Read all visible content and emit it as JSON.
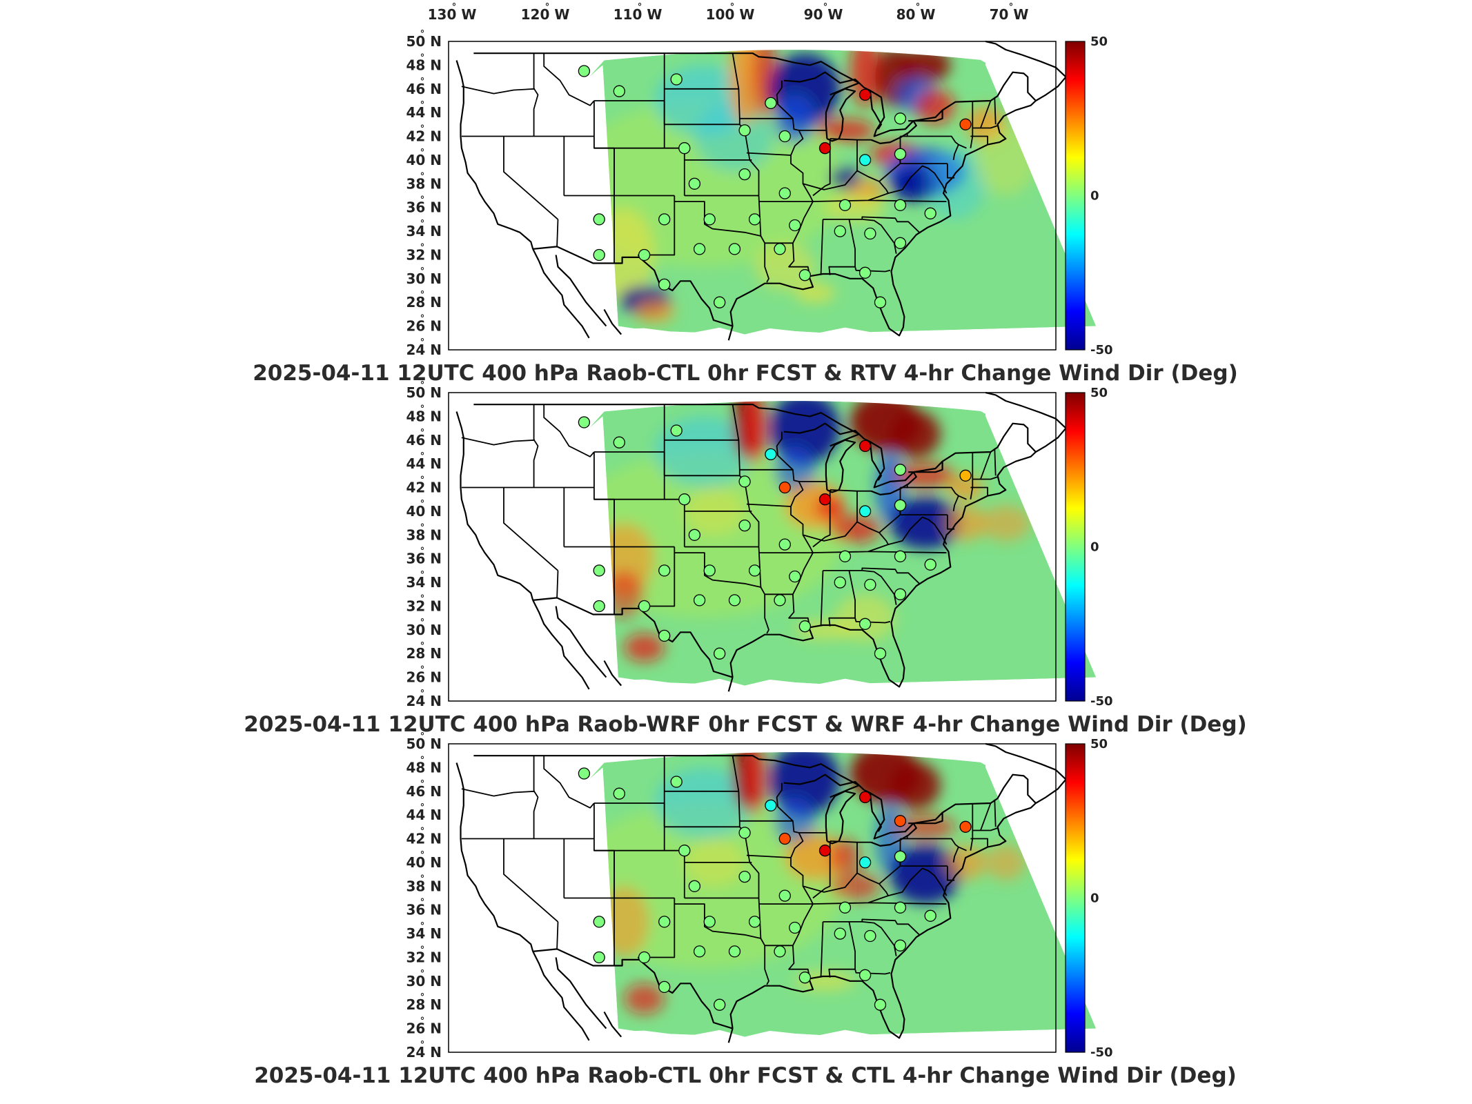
{
  "top_axis": {
    "labels": [
      "130",
      "120",
      "110",
      "100",
      "90",
      "80",
      "70"
    ],
    "suffix": "W"
  },
  "lat_axis": {
    "labels": [
      "50",
      "48",
      "46",
      "44",
      "42",
      "40",
      "38",
      "36",
      "34",
      "32",
      "30",
      "28",
      "26",
      "24"
    ],
    "suffix": "N"
  },
  "degree_symbol": "°",
  "colorbar": {
    "labels": [
      "50",
      "0",
      "-50"
    ],
    "colors": [
      "#7f0000",
      "#ff0000",
      "#ff8000",
      "#ffff00",
      "#80ff80",
      "#00ffff",
      "#0080ff",
      "#0000ff",
      "#00008f"
    ]
  },
  "panels": [
    {
      "title": "2025-04-11 12UTC 400 hPa Raob-CTL 0hr FCST & RTV 4-hr Change Wind Dir (Deg)"
    },
    {
      "title": "2025-04-11 12UTC 400 hPa Raob-WRF 0hr FCST & WRF 4-hr Change Wind Dir (Deg)"
    },
    {
      "title": "2025-04-11 12UTC 400 hPa Raob-CTL 0hr FCST & CTL 4-hr Change Wind Dir (Deg)"
    }
  ],
  "field_colors": {
    "base": "#7ee08a",
    "base2": "#a8e85a",
    "cyan": "#38c8e8",
    "yellow": "#e8e040",
    "orange": "#ff9020",
    "red": "#e81010",
    "darkred": "#8a0000",
    "blue": "#1848e0",
    "navy": "#000090"
  },
  "stations": [
    {
      "lon": -112.0,
      "lat": 47.5,
      "vals": [
        0,
        0,
        0
      ]
    },
    {
      "lon": -108.5,
      "lat": 45.8,
      "vals": [
        0,
        0,
        0
      ]
    },
    {
      "lon": -102.8,
      "lat": 46.8,
      "vals": [
        0,
        0,
        0
      ]
    },
    {
      "lon": -93.4,
      "lat": 44.8,
      "vals": [
        0,
        -10,
        -10
      ]
    },
    {
      "lon": -84.0,
      "lat": 45.5,
      "vals": [
        40,
        40,
        40
      ]
    },
    {
      "lon": -80.5,
      "lat": 43.5,
      "vals": [
        0,
        0,
        30
      ]
    },
    {
      "lon": -74.0,
      "lat": 43.0,
      "vals": [
        30,
        20,
        30
      ]
    },
    {
      "lon": -96.0,
      "lat": 42.5,
      "vals": [
        0,
        0,
        0
      ]
    },
    {
      "lon": -92.0,
      "lat": 42.0,
      "vals": [
        0,
        30,
        30
      ]
    },
    {
      "lon": -88.0,
      "lat": 41.0,
      "vals": [
        40,
        40,
        40
      ]
    },
    {
      "lon": -84.0,
      "lat": 40.0,
      "vals": [
        -10,
        -10,
        -10
      ]
    },
    {
      "lon": -80.5,
      "lat": 40.5,
      "vals": [
        0,
        0,
        0
      ]
    },
    {
      "lon": -102.0,
      "lat": 41.0,
      "vals": [
        0,
        0,
        0
      ]
    },
    {
      "lon": -101.0,
      "lat": 38.0,
      "vals": [
        0,
        0,
        0
      ]
    },
    {
      "lon": -96.0,
      "lat": 38.8,
      "vals": [
        0,
        0,
        0
      ]
    },
    {
      "lon": -92.0,
      "lat": 37.2,
      "vals": [
        0,
        0,
        0
      ]
    },
    {
      "lon": -86.0,
      "lat": 36.2,
      "vals": [
        0,
        0,
        0
      ]
    },
    {
      "lon": -80.5,
      "lat": 36.2,
      "vals": [
        0,
        0,
        0
      ]
    },
    {
      "lon": -77.5,
      "lat": 35.5,
      "vals": [
        0,
        0,
        0
      ]
    },
    {
      "lon": -110.5,
      "lat": 35.0,
      "vals": [
        0,
        0,
        0
      ]
    },
    {
      "lon": -104.0,
      "lat": 35.0,
      "vals": [
        0,
        0,
        0
      ]
    },
    {
      "lon": -99.5,
      "lat": 35.0,
      "vals": [
        0,
        0,
        0
      ]
    },
    {
      "lon": -95.0,
      "lat": 35.0,
      "vals": [
        0,
        0,
        0
      ]
    },
    {
      "lon": -91.0,
      "lat": 34.5,
      "vals": [
        0,
        0,
        0
      ]
    },
    {
      "lon": -86.5,
      "lat": 34.0,
      "vals": [
        0,
        0,
        0
      ]
    },
    {
      "lon": -83.5,
      "lat": 33.8,
      "vals": [
        0,
        0,
        0
      ]
    },
    {
      "lon": -80.5,
      "lat": 33.0,
      "vals": [
        0,
        0,
        0
      ]
    },
    {
      "lon": -110.5,
      "lat": 32.0,
      "vals": [
        0,
        0,
        0
      ]
    },
    {
      "lon": -106.0,
      "lat": 32.0,
      "vals": [
        0,
        0,
        0
      ]
    },
    {
      "lon": -100.5,
      "lat": 32.5,
      "vals": [
        0,
        0,
        0
      ]
    },
    {
      "lon": -97.0,
      "lat": 32.5,
      "vals": [
        0,
        0,
        0
      ]
    },
    {
      "lon": -92.5,
      "lat": 32.5,
      "vals": [
        0,
        0,
        0
      ]
    },
    {
      "lon": -90.0,
      "lat": 30.3,
      "vals": [
        0,
        0,
        0
      ]
    },
    {
      "lon": -84.0,
      "lat": 30.5,
      "vals": [
        0,
        0,
        0
      ]
    },
    {
      "lon": -104.0,
      "lat": 29.5,
      "vals": [
        0,
        0,
        0
      ]
    },
    {
      "lon": -98.5,
      "lat": 28.0,
      "vals": [
        0,
        0,
        0
      ]
    },
    {
      "lon": -82.5,
      "lat": 28.0,
      "vals": [
        0,
        0,
        0
      ]
    }
  ]
}
